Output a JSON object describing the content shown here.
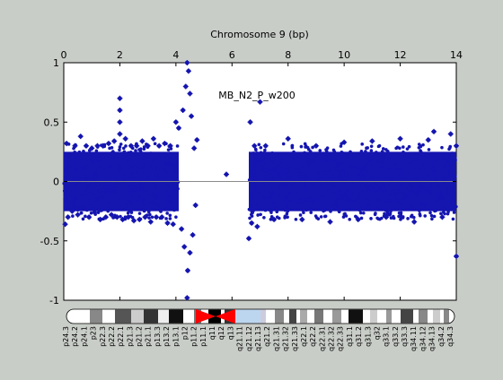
{
  "chart_data": {
    "type": "scatter",
    "title": "Chromosome 9 (bp)",
    "annotation": "MB_N2_P_w200",
    "xlim": [
      0,
      14
    ],
    "ylim": [
      -1,
      1
    ],
    "x_ticks": [
      0,
      2,
      4,
      6,
      8,
      10,
      12,
      14
    ],
    "x_tick_labels": [
      "0",
      "2",
      "4",
      "6",
      "8",
      "10",
      "12",
      "14"
    ],
    "y_ticks": [
      -1,
      -0.5,
      0,
      0.5,
      1
    ],
    "y_tick_labels": [
      "-1",
      "-0.5",
      "0",
      "0.5",
      "1"
    ],
    "x_ticks_on_top": true,
    "grid": false,
    "baseline_y": 0,
    "series": [
      {
        "color": "#1515b0",
        "marker": "asterisk",
        "x": [
          0.05,
          0.1,
          0.15,
          0.2,
          0.3,
          0.4,
          0.5,
          0.6,
          0.7,
          0.8,
          0.9,
          1.0,
          1.1,
          1.2,
          1.3,
          1.4,
          1.5,
          1.6,
          1.7,
          1.8,
          1.9,
          2.0,
          2.0,
          2.0,
          2.0,
          2.1,
          2.2,
          2.3,
          2.4,
          2.5,
          2.6,
          2.7,
          2.8,
          2.9,
          3.0,
          3.1,
          3.2,
          3.3,
          3.4,
          3.5,
          3.6,
          3.7,
          3.8,
          3.9,
          4.0,
          4.1,
          4.2,
          4.25,
          4.3,
          4.35,
          4.4,
          4.4,
          4.42,
          4.45,
          4.5,
          4.5,
          4.55,
          4.6,
          4.65,
          4.7,
          4.75,
          5.8,
          6.6,
          6.65,
          6.7,
          6.8,
          6.9,
          7.0,
          7.2,
          7.5,
          8.0,
          8.5,
          9.0,
          9.5,
          10.0,
          10.5,
          11.0,
          11.5,
          12.0,
          12.5,
          13.0,
          13.2,
          13.5,
          13.8,
          14.0,
          14.0
        ],
        "y": [
          -0.36,
          0.32,
          -0.3,
          0.22,
          -0.25,
          0.3,
          -0.28,
          0.38,
          -0.22,
          0.3,
          -0.3,
          0.28,
          -0.26,
          0.3,
          -0.32,
          0.3,
          -0.3,
          0.32,
          -0.28,
          0.34,
          -0.3,
          0.7,
          0.6,
          0.5,
          0.4,
          -0.32,
          0.36,
          -0.3,
          0.3,
          -0.33,
          0.3,
          -0.32,
          0.34,
          -0.3,
          0.3,
          -0.34,
          0.36,
          -0.3,
          0.3,
          -0.3,
          0.32,
          -0.35,
          0.3,
          -0.36,
          0.5,
          0.45,
          -0.4,
          0.6,
          -0.55,
          0.8,
          1.0,
          -0.98,
          -0.75,
          0.93,
          -0.6,
          0.74,
          0.55,
          -0.45,
          0.28,
          -0.2,
          0.35,
          0.06,
          -0.48,
          0.5,
          -0.35,
          0.3,
          -0.38,
          0.67,
          0.3,
          -0.32,
          0.36,
          -0.32,
          0.3,
          -0.34,
          0.33,
          -0.32,
          0.34,
          -0.3,
          0.36,
          -0.34,
          0.35,
          0.42,
          -0.3,
          0.4,
          -0.63,
          0.3
        ],
        "dense_band": {
          "x_ranges": [
            [
              0,
              4.1
            ],
            [
              6.6,
              14
            ]
          ],
          "y_min": -0.25,
          "y_max": 0.25
        }
      }
    ],
    "cytoband_labels": [
      "p24.3",
      "p24.2",
      "p24.1",
      "p23",
      "p22.3",
      "p22.2",
      "p22.1",
      "p21.3",
      "p21.2",
      "p21.1",
      "p13.3",
      "p13.2",
      "p13.1",
      "p12",
      "p11.2",
      "p11.1",
      "q11",
      "q12",
      "q13",
      "q21.11",
      "q21.12",
      "q21.13",
      "q21.2",
      "q21.31",
      "q21.32",
      "q21.33",
      "q22.1",
      "q22.2",
      "q22.31",
      "q22.32",
      "q22.33",
      "q31.1",
      "q31.2",
      "q31.3",
      "q32",
      "q33.1",
      "q33.2",
      "q33.3",
      "q34.11",
      "q34.12",
      "q34.13",
      "q34.2",
      "q34.3"
    ]
  }
}
